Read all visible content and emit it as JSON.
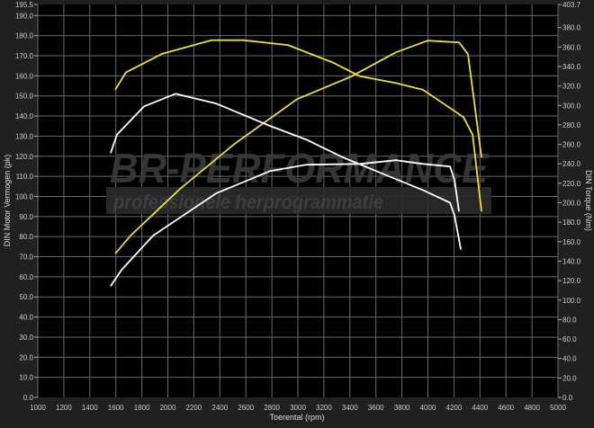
{
  "chart_data": {
    "type": "line",
    "xlabel": "Toerental (rpm)",
    "ylabel": "DIN Motor Vermogen (pk)",
    "y2label": "DIN Torque (Nm)",
    "xlim": [
      1000,
      5000
    ],
    "ylim": [
      0,
      195.5
    ],
    "y2lim": [
      0,
      403.7
    ],
    "x_ticks": [
      1000,
      1200,
      1400,
      1600,
      1800,
      2000,
      2200,
      2400,
      2600,
      2800,
      3000,
      3200,
      3400,
      3600,
      3800,
      4000,
      4200,
      4400,
      4600,
      4800,
      5000
    ],
    "y_ticks": [
      "0.0",
      "10.0",
      "20.0",
      "30.0",
      "40.0",
      "50.0",
      "60.0",
      "70.0",
      "80.0",
      "90.0",
      "100.0",
      "110.0",
      "120.0",
      "130.0",
      "140.0",
      "150.0",
      "160.0",
      "170.0",
      "180.0",
      "190.0",
      "195.5"
    ],
    "y2_ticks": [
      "0.0",
      "20.0",
      "40.0",
      "60.0",
      "80.0",
      "100.0",
      "120.0",
      "140.0",
      "160.0",
      "180.0",
      "200.0",
      "220.0",
      "240.0",
      "260.0",
      "280.0",
      "300.0",
      "320.0",
      "340.0",
      "360.0",
      "380.0",
      "403.7"
    ],
    "grid": true,
    "series": [
      {
        "axis": "left",
        "color": "#e8e040",
        "x": [
          1595,
          1713,
          2093,
          2509,
          2993,
          3408,
          3754,
          3997,
          4239,
          4308,
          4412
        ],
        "y": [
          71.5,
          80.5,
          103.7,
          126,
          148.4,
          159.6,
          171.7,
          177.5,
          176.6,
          170.8,
          119.4
        ]
      },
      {
        "axis": "right",
        "color": "#e8e040",
        "x": [
          1595,
          1678,
          1955,
          2335,
          2578,
          2924,
          3270,
          3477,
          3754,
          3962,
          4273,
          4343,
          4412
        ],
        "y": [
          316,
          334,
          353,
          367,
          367,
          362,
          344,
          330,
          323,
          316,
          288,
          270,
          191
        ]
      },
      {
        "axis": "left",
        "color": "#ffffff",
        "x": [
          1560,
          1644,
          1886,
          2370,
          2785,
          3062,
          3477,
          3754,
          3962,
          4170,
          4204,
          4239
        ],
        "y": [
          55.4,
          63.5,
          80.5,
          101.5,
          112.6,
          115.8,
          116.2,
          118,
          116.2,
          114.9,
          108.2,
          92.5
        ]
      },
      {
        "axis": "right",
        "color": "#ffffff",
        "x": [
          1560,
          1609,
          1817,
          2059,
          2370,
          2785,
          3062,
          3339,
          3685,
          3962,
          4170,
          4204,
          4253
        ],
        "y": [
          251,
          270,
          299,
          312,
          302,
          279,
          265,
          247,
          228,
          213,
          200,
          187,
          152
        ]
      }
    ]
  },
  "watermark": {
    "brand": "BR-PERFORMANCE",
    "tagline": "professionele herprogrammatie"
  }
}
